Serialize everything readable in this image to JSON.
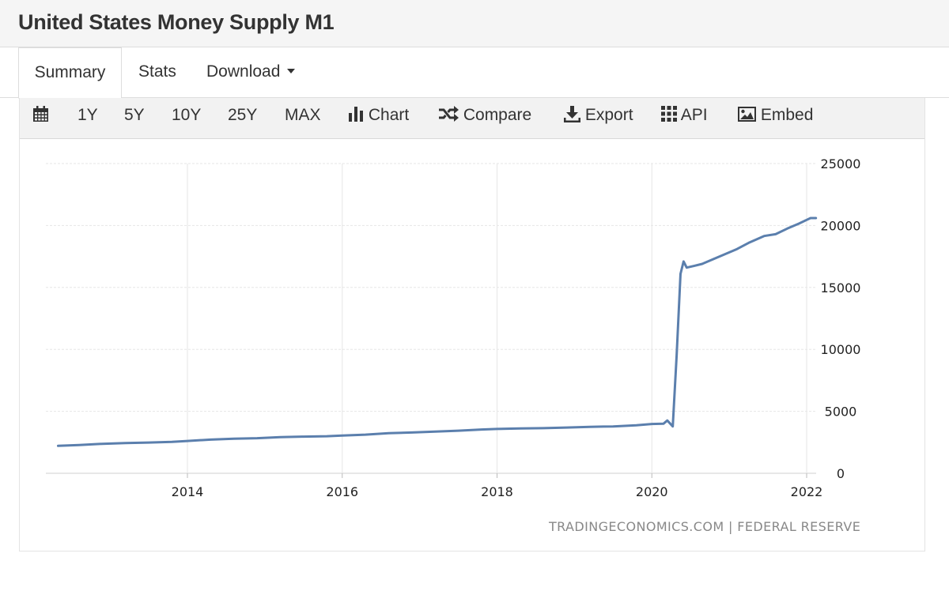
{
  "page": {
    "title": "United States Money Supply M1"
  },
  "tabs": [
    {
      "label": "Summary",
      "active": true
    },
    {
      "label": "Stats",
      "active": false
    },
    {
      "label": "Download",
      "active": false
    }
  ],
  "toolbar": {
    "calendar_icon": "calendar-icon",
    "ranges": [
      "1Y",
      "5Y",
      "10Y",
      "25Y",
      "MAX"
    ],
    "chart_label": "Chart",
    "compare_label": "Compare",
    "export_label": "Export",
    "api_label": "API",
    "embed_label": "Embed"
  },
  "credit": "TRADINGECONOMICS.COM | FEDERAL RESERVE",
  "colors": {
    "line": "#5b7fad",
    "grid": "#e6e6e6",
    "title_bar": "#f5f5f5",
    "toolbar": "#f2f2f2"
  },
  "chart_data": {
    "type": "line",
    "title": "",
    "xlabel": "",
    "ylabel": "",
    "x_ticks": [
      "2014",
      "2016",
      "2018",
      "2020",
      "2022"
    ],
    "y_ticks": [
      "25000",
      "20000",
      "15000",
      "10000",
      "5000",
      "0"
    ],
    "ylim": [
      0,
      25000
    ],
    "xlim": [
      2012.25,
      2022.15
    ],
    "y_axis_position": "right",
    "grid": true,
    "series": [
      {
        "values": [
          [
            2012.33,
            2210
          ],
          [
            2012.6,
            2280
          ],
          [
            2012.9,
            2380
          ],
          [
            2013.2,
            2440
          ],
          [
            2013.5,
            2480
          ],
          [
            2013.8,
            2540
          ],
          [
            2014.0,
            2610
          ],
          [
            2014.3,
            2720
          ],
          [
            2014.6,
            2790
          ],
          [
            2014.9,
            2830
          ],
          [
            2015.2,
            2920
          ],
          [
            2015.5,
            2960
          ],
          [
            2015.8,
            2990
          ],
          [
            2016.0,
            3050
          ],
          [
            2016.3,
            3120
          ],
          [
            2016.6,
            3240
          ],
          [
            2016.9,
            3290
          ],
          [
            2017.2,
            3360
          ],
          [
            2017.5,
            3440
          ],
          [
            2017.8,
            3530
          ],
          [
            2018.0,
            3580
          ],
          [
            2018.3,
            3620
          ],
          [
            2018.6,
            3640
          ],
          [
            2018.9,
            3690
          ],
          [
            2019.2,
            3750
          ],
          [
            2019.5,
            3780
          ],
          [
            2019.8,
            3870
          ],
          [
            2020.0,
            3980
          ],
          [
            2020.15,
            4000
          ],
          [
            2020.2,
            4260
          ],
          [
            2020.27,
            3780
          ],
          [
            2020.32,
            9500
          ],
          [
            2020.37,
            16100
          ],
          [
            2020.41,
            17100
          ],
          [
            2020.45,
            16600
          ],
          [
            2020.55,
            16750
          ],
          [
            2020.65,
            16900
          ],
          [
            2020.8,
            17300
          ],
          [
            2020.95,
            17700
          ],
          [
            2021.1,
            18100
          ],
          [
            2021.25,
            18600
          ],
          [
            2021.45,
            19150
          ],
          [
            2021.6,
            19300
          ],
          [
            2021.75,
            19750
          ],
          [
            2021.9,
            20150
          ],
          [
            2022.0,
            20450
          ],
          [
            2022.05,
            20600
          ],
          [
            2022.12,
            20600
          ]
        ]
      }
    ]
  }
}
